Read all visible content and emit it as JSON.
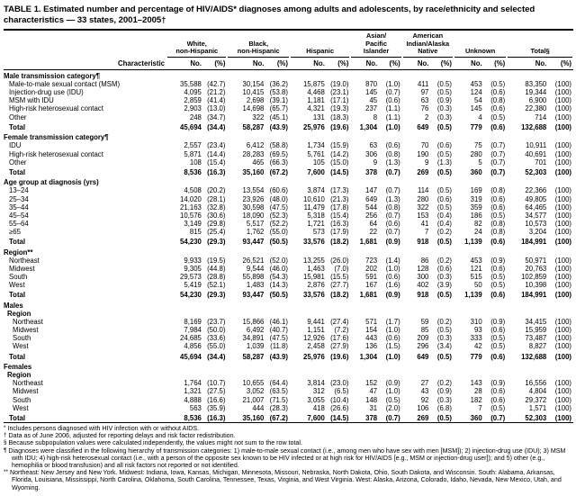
{
  "title": "TABLE 1. Estimated number and percentage of HIV/AIDS* diagnoses among adults and adolescents, by race/ethnicity and selected characteristics — 33 states, 2001–2005†",
  "table": {
    "characteristic_header": "Characteristic",
    "column_groups": [
      "White,\nnon-Hispanic",
      "Black,\nnon-Hispanic",
      "Hispanic",
      "Asian/\nPacific\nIslander",
      "American\nIndian/Alaska\nNative",
      "Unknown",
      "Total§"
    ],
    "sub_columns": [
      "No.",
      "(%)"
    ],
    "rows": [
      {
        "type": "section",
        "label": "Male transmission category¶"
      },
      {
        "type": "row",
        "label": "Male-to-male sexual contact (MSM)",
        "cells": [
          "35,588",
          "(42.7)",
          "30,154",
          "(36.2)",
          "15,875",
          "(19.0)",
          "870",
          "(1.0)",
          "411",
          "(0.5)",
          "453",
          "(0.5)",
          "83,350",
          "(100)"
        ]
      },
      {
        "type": "row",
        "label": "Injection-drug use (IDU)",
        "cells": [
          "4,095",
          "(21.2)",
          "10,415",
          "(53.8)",
          "4,468",
          "(23.1)",
          "145",
          "(0.7)",
          "97",
          "(0.5)",
          "124",
          "(0.6)",
          "19,344",
          "(100)"
        ]
      },
      {
        "type": "row",
        "label": "MSM with IDU",
        "cells": [
          "2,859",
          "(41.4)",
          "2,698",
          "(39.1)",
          "1,181",
          "(17.1)",
          "45",
          "(0.6)",
          "63",
          "(0.9)",
          "54",
          "(0.8)",
          "6,900",
          "(100)"
        ]
      },
      {
        "type": "row",
        "label": "High-risk heterosexual contact",
        "cells": [
          "2,903",
          "(13.0)",
          "14,698",
          "(65.7)",
          "4,321",
          "(19.3)",
          "237",
          "(1.1)",
          "76",
          "(0.3)",
          "145",
          "(0.6)",
          "22,380",
          "(100)"
        ]
      },
      {
        "type": "row",
        "label": "Other",
        "cells": [
          "248",
          "(34.7)",
          "322",
          "(45.1)",
          "131",
          "(18.3)",
          "8",
          "(1.1)",
          "2",
          "(0.3)",
          "4",
          "(0.5)",
          "714",
          "(100)"
        ]
      },
      {
        "type": "total",
        "label": "Total",
        "cells": [
          "45,694",
          "(34.4)",
          "58,287",
          "(43.9)",
          "25,976",
          "(19.6)",
          "1,304",
          "(1.0)",
          "649",
          "(0.5)",
          "779",
          "(0.6)",
          "132,688",
          "(100)"
        ]
      },
      {
        "type": "section",
        "label": "Female transmission category¶"
      },
      {
        "type": "row",
        "label": "IDU",
        "cells": [
          "2,557",
          "(23.4)",
          "6,412",
          "(58.8)",
          "1,734",
          "(15.9)",
          "63",
          "(0.6)",
          "70",
          "(0.6)",
          "75",
          "(0.7)",
          "10,911",
          "(100)"
        ]
      },
      {
        "type": "row",
        "label": "High-risk heterosexual contact",
        "cells": [
          "5,871",
          "(14.4)",
          "28,283",
          "(69.5)",
          "5,761",
          "(14.2)",
          "306",
          "(0.8)",
          "190",
          "(0.5)",
          "280",
          "(0.7)",
          "40,691",
          "(100)"
        ]
      },
      {
        "type": "row",
        "label": "Other",
        "cells": [
          "108",
          "(15.4)",
          "465",
          "(66.3)",
          "105",
          "(15.0)",
          "9",
          "(1.3)",
          "9",
          "(1.3)",
          "5",
          "(0.7)",
          "701",
          "(100)"
        ]
      },
      {
        "type": "total",
        "label": "Total",
        "cells": [
          "8,536",
          "(16.3)",
          "35,160",
          "(67.2)",
          "7,600",
          "(14.5)",
          "378",
          "(0.7)",
          "269",
          "(0.5)",
          "360",
          "(0.7)",
          "52,303",
          "(100)"
        ]
      },
      {
        "type": "section",
        "label": "Age group at diagnosis (yrs)"
      },
      {
        "type": "row",
        "label": "13–24",
        "cells": [
          "4,508",
          "(20.2)",
          "13,554",
          "(60.6)",
          "3,874",
          "(17.3)",
          "147",
          "(0.7)",
          "114",
          "(0.5)",
          "169",
          "(0.8)",
          "22,366",
          "(100)"
        ]
      },
      {
        "type": "row",
        "label": "25–34",
        "cells": [
          "14,020",
          "(28.1)",
          "23,926",
          "(48.0)",
          "10,610",
          "(21.3)",
          "649",
          "(1.3)",
          "280",
          "(0.6)",
          "319",
          "(0.6)",
          "49,805",
          "(100)"
        ]
      },
      {
        "type": "row",
        "label": "35–44",
        "cells": [
          "21,163",
          "(32.8)",
          "30,598",
          "(47.5)",
          "11,479",
          "(17.8)",
          "544",
          "(0.8)",
          "322",
          "(0.5)",
          "359",
          "(0.6)",
          "64,465",
          "(100)"
        ]
      },
      {
        "type": "row",
        "label": "45–54",
        "cells": [
          "10,576",
          "(30.6)",
          "18,090",
          "(52.3)",
          "5,318",
          "(15.4)",
          "256",
          "(0.7)",
          "153",
          "(0.4)",
          "186",
          "(0.5)",
          "34,577",
          "(100)"
        ]
      },
      {
        "type": "row",
        "label": "55–64",
        "cells": [
          "3,149",
          "(29.8)",
          "5,517",
          "(52.2)",
          "1,721",
          "(16.3)",
          "64",
          "(0.6)",
          "41",
          "(0.4)",
          "82",
          "(0.8)",
          "10,573",
          "(100)"
        ]
      },
      {
        "type": "row",
        "label": "≥65",
        "cells": [
          "815",
          "(25.4)",
          "1,762",
          "(55.0)",
          "573",
          "(17.9)",
          "22",
          "(0.7)",
          "7",
          "(0.2)",
          "24",
          "(0.8)",
          "3,204",
          "(100)"
        ]
      },
      {
        "type": "total",
        "label": "Total",
        "cells": [
          "54,230",
          "(29.3)",
          "93,447",
          "(50.5)",
          "33,576",
          "(18.2)",
          "1,681",
          "(0.9)",
          "918",
          "(0.5)",
          "1,139",
          "(0.6)",
          "184,991",
          "(100)"
        ]
      },
      {
        "type": "section",
        "label": "Region**"
      },
      {
        "type": "row",
        "label": "Northeast",
        "cells": [
          "9,933",
          "(19.5)",
          "26,521",
          "(52.0)",
          "13,255",
          "(26.0)",
          "723",
          "(1.4)",
          "86",
          "(0.2)",
          "453",
          "(0.9)",
          "50,971",
          "(100)"
        ]
      },
      {
        "type": "row",
        "label": "Midwest",
        "cells": [
          "9,305",
          "(44.8)",
          "9,544",
          "(46.0)",
          "1,463",
          "(7.0)",
          "202",
          "(1.0)",
          "128",
          "(0.6)",
          "121",
          "(0.6)",
          "20,763",
          "(100)"
        ]
      },
      {
        "type": "row",
        "label": "South",
        "cells": [
          "29,573",
          "(28.8)",
          "55,898",
          "(54.3)",
          "15,981",
          "(15.5)",
          "591",
          "(0.6)",
          "300",
          "(0.3)",
          "515",
          "(0.5)",
          "102,859",
          "(100)"
        ]
      },
      {
        "type": "row",
        "label": "West",
        "cells": [
          "5,419",
          "(52.1)",
          "1,483",
          "(14.3)",
          "2,876",
          "(27.7)",
          "167",
          "(1.6)",
          "402",
          "(3.9)",
          "50",
          "(0.5)",
          "10,398",
          "(100)"
        ]
      },
      {
        "type": "total",
        "label": "Total",
        "cells": [
          "54,230",
          "(29.3)",
          "93,447",
          "(50.5)",
          "33,576",
          "(18.2)",
          "1,681",
          "(0.9)",
          "918",
          "(0.5)",
          "1,139",
          "(0.6)",
          "184,991",
          "(100)"
        ]
      },
      {
        "type": "section",
        "label": "Males"
      },
      {
        "type": "sub",
        "label": "Region"
      },
      {
        "type": "row",
        "level": 2,
        "label": "Northeast",
        "cells": [
          "8,169",
          "(23.7)",
          "15,866",
          "(46.1)",
          "9,441",
          "(27.4)",
          "571",
          "(1.7)",
          "59",
          "(0.2)",
          "310",
          "(0.9)",
          "34,415",
          "(100)"
        ]
      },
      {
        "type": "row",
        "level": 2,
        "label": "Midwest",
        "cells": [
          "7,984",
          "(50.0)",
          "6,492",
          "(40.7)",
          "1,151",
          "(7.2)",
          "154",
          "(1.0)",
          "85",
          "(0.5)",
          "93",
          "(0.6)",
          "15,959",
          "(100)"
        ]
      },
      {
        "type": "row",
        "level": 2,
        "label": "South",
        "cells": [
          "24,685",
          "(33.6)",
          "34,891",
          "(47.5)",
          "12,926",
          "(17.6)",
          "443",
          "(0.6)",
          "209",
          "(0.3)",
          "333",
          "(0.5)",
          "73,487",
          "(100)"
        ]
      },
      {
        "type": "row",
        "level": 2,
        "label": "West",
        "cells": [
          "4,856",
          "(55.0)",
          "1,039",
          "(11.8)",
          "2,458",
          "(27.9)",
          "136",
          "(1.5)",
          "296",
          "(3.4)",
          "42",
          "(0.5)",
          "8,827",
          "(100)"
        ]
      },
      {
        "type": "total",
        "label": "Total",
        "cells": [
          "45,694",
          "(34.4)",
          "58,287",
          "(43.9)",
          "25,976",
          "(19.6)",
          "1,304",
          "(1.0)",
          "649",
          "(0.5)",
          "779",
          "(0.6)",
          "132,688",
          "(100)"
        ]
      },
      {
        "type": "section",
        "label": "Females"
      },
      {
        "type": "sub",
        "label": "Region"
      },
      {
        "type": "row",
        "level": 2,
        "label": "Northeast",
        "cells": [
          "1,764",
          "(10.7)",
          "10,655",
          "(64.4)",
          "3,814",
          "(23.0)",
          "152",
          "(0.9)",
          "27",
          "(0.2)",
          "143",
          "(0.9)",
          "16,556",
          "(100)"
        ]
      },
      {
        "type": "row",
        "level": 2,
        "label": "Midwest",
        "cells": [
          "1,321",
          "(27.5)",
          "3,052",
          "(63.5)",
          "312",
          "(6.5)",
          "47",
          "(1.0)",
          "43",
          "(0.9)",
          "28",
          "(0.6)",
          "4,804",
          "(100)"
        ]
      },
      {
        "type": "row",
        "level": 2,
        "label": "South",
        "cells": [
          "4,888",
          "(16.6)",
          "21,007",
          "(71.5)",
          "3,055",
          "(10.4)",
          "148",
          "(0.5)",
          "92",
          "(0.3)",
          "182",
          "(0.6)",
          "29,372",
          "(100)"
        ]
      },
      {
        "type": "row",
        "level": 2,
        "label": "West",
        "cells": [
          "563",
          "(35.9)",
          "444",
          "(28.3)",
          "418",
          "(26.6)",
          "31",
          "(2.0)",
          "106",
          "(6.8)",
          "7",
          "(0.5)",
          "1,571",
          "(100)"
        ]
      },
      {
        "type": "total",
        "label": "Total",
        "cells": [
          "8,536",
          "(16.3)",
          "35,160",
          "(67.2)",
          "7,600",
          "(14.5)",
          "378",
          "(0.7)",
          "269",
          "(0.5)",
          "360",
          "(0.7)",
          "52,303",
          "(100)"
        ]
      }
    ]
  },
  "footnotes": [
    {
      "marker": "*",
      "text": "Includes persons diagnosed with HIV infection with or without AIDS."
    },
    {
      "marker": "†",
      "text": "Data as of June 2006, adjusted for reporting delays and risk factor redistribution."
    },
    {
      "marker": "§",
      "text": "Because subpopulation values were calculated independently, the values might not sum to the row total."
    },
    {
      "marker": "¶",
      "text": "Diagnoses were classified in the following hierarchy of transmission categories: 1) male-to-male sexual contact (i.e., among men who have sex with men [MSM]); 2) injection-drug use (IDU); 3) MSM with IDU; 4) high-risk heterosexual contact (i.e., with a person of the opposite sex known to be HIV infected or at high risk for HIV/AIDS [e.g., MSM or injection-drug user]); and 5) other (e.g., hemophilia or blood transfusion) and all risk factors not reported or not identified."
    },
    {
      "marker": "**",
      "text": "Northeast: New Jersey and New York. Midwest: Indiana, Iowa, Kansas, Michigan, Minnesota, Missouri, Nebraska, North Dakota, Ohio, South Dakota, and Wisconsin. South: Alabama, Arkansas, Florida, Louisiana, Mississippi, North Carolina, Oklahoma, South Carolina, Tennessee, Texas, Virginia, and West Virginia. West: Alaska, Arizona, Colorado, Idaho, Nevada, New Mexico, Utah, and Wyoming."
    }
  ]
}
